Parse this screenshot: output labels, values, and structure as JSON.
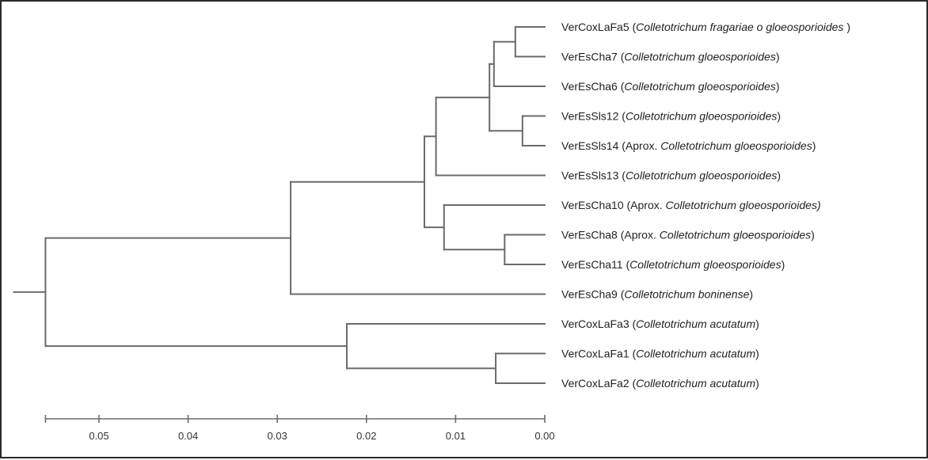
{
  "dendrogram": {
    "leaves": [
      {
        "id": "VerCoxLaFa5",
        "prefix": " (",
        "taxon": "Colletotrichum fragariae o gloeosporioides",
        "suffix": " )"
      },
      {
        "id": "VerEsCha7",
        "prefix": " (",
        "taxon": "Colletotrichum gloeosporioides",
        "suffix": ")"
      },
      {
        "id": "VerEsCha6",
        "prefix": " (",
        "taxon": "Colletotrichum gloeosporioides",
        "suffix": ")"
      },
      {
        "id": "VerEsSls12",
        "prefix": " (",
        "taxon": "Colletotrichum gloeosporioides",
        "suffix": ")"
      },
      {
        "id": "VerEsSls14",
        "prefix": " (Aprox. ",
        "taxon": "Colletotrichum gloeosporioides",
        "suffix": ")"
      },
      {
        "id": "VerEsSls13",
        "prefix": " (",
        "taxon": "Colletotrichum gloeosporioides",
        "suffix": ")"
      },
      {
        "id": "VerEsCha10",
        "prefix": " (Aprox. ",
        "taxon": "Colletotrichum  gloeosporioides)",
        "suffix": ""
      },
      {
        "id": "VerEsCha8",
        "prefix": " (Aprox. ",
        "taxon": "Colletotrichum gloeosporioides",
        "suffix": ")"
      },
      {
        "id": "VerEsCha11",
        "prefix": " (",
        "taxon": "Colletotrichum gloeosporioides",
        "suffix": ")"
      },
      {
        "id": "VerEsCha9",
        "prefix": " (",
        "taxon": "Colletotrichum boninense",
        "suffix": ")"
      },
      {
        "id": "VerCoxLaFa3",
        "prefix": " (",
        "taxon": "Colletotrichum acutatum",
        "suffix": ")"
      },
      {
        "id": "VerCoxLaFa1",
        "prefix": " (",
        "taxon": "Colletotrichum acutatum",
        "suffix": ")"
      },
      {
        "id": "VerCoxLaFa2",
        "prefix": " (",
        "taxon": "Colletotrichum acutatum",
        "suffix": ")"
      }
    ],
    "tree": {
      "h": 0.056,
      "children": [
        {
          "h": 0.0285,
          "children": [
            {
              "h": 0.0135,
              "children": [
                {
                  "h": 0.0122,
                  "children": [
                    {
                      "h": 0.0062,
                      "children": [
                        {
                          "h": 0.0057,
                          "children": [
                            {
                              "h": 0.0033,
                              "children": [
                                {
                                  "leaf": 0
                                },
                                {
                                  "leaf": 1
                                }
                              ]
                            },
                            {
                              "leaf": 2
                            }
                          ]
                        },
                        {
                          "h": 0.0025,
                          "children": [
                            {
                              "leaf": 3
                            },
                            {
                              "leaf": 4
                            }
                          ]
                        }
                      ]
                    },
                    {
                      "leaf": 5
                    }
                  ]
                },
                {
                  "h": 0.0113,
                  "children": [
                    {
                      "leaf": 6
                    },
                    {
                      "h": 0.0045,
                      "children": [
                        {
                          "leaf": 7
                        },
                        {
                          "leaf": 8
                        }
                      ]
                    }
                  ]
                }
              ]
            },
            {
              "leaf": 9
            }
          ]
        },
        {
          "h": 0.0222,
          "children": [
            {
              "leaf": 10
            },
            {
              "h": 0.0055,
              "children": [
                {
                  "leaf": 11
                },
                {
                  "leaf": 12
                }
              ]
            }
          ]
        }
      ]
    },
    "axis": {
      "ticks": [
        {
          "value": 0.05,
          "label": "0.05"
        },
        {
          "value": 0.04,
          "label": "0.04"
        },
        {
          "value": 0.03,
          "label": "0.03"
        },
        {
          "value": 0.02,
          "label": "0.02"
        },
        {
          "value": 0.01,
          "label": "0.01"
        },
        {
          "value": 0.0,
          "label": "0.00"
        }
      ],
      "range": [
        0.056,
        0.0
      ]
    },
    "colors": {
      "branch": "#6b6b6b",
      "text": "#222222"
    }
  }
}
